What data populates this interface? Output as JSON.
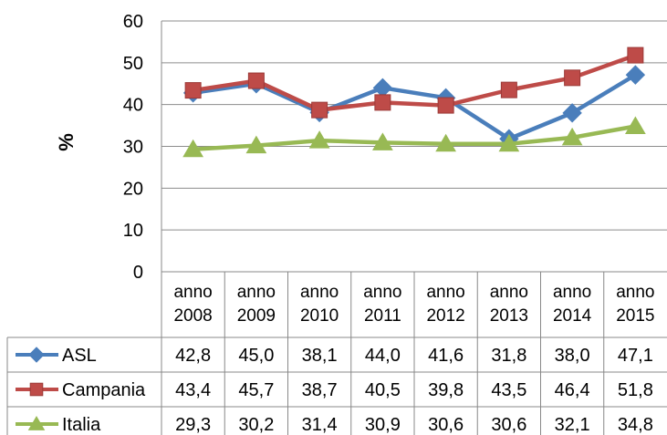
{
  "chart_data": {
    "type": "line",
    "ylabel": "%",
    "ylim": [
      0,
      60
    ],
    "yticks": [
      "0",
      "10",
      "20",
      "30",
      "40",
      "50",
      "60"
    ],
    "categories": [
      [
        "anno",
        "2008"
      ],
      [
        "anno",
        "2009"
      ],
      [
        "anno",
        "2010"
      ],
      [
        "anno",
        "2011"
      ],
      [
        "anno",
        "2012"
      ],
      [
        "anno",
        "2013"
      ],
      [
        "anno",
        "2014"
      ],
      [
        "anno",
        "2015"
      ]
    ],
    "grid": "horizontal",
    "legend": "data-table",
    "series": [
      {
        "name": "ASL",
        "color": "#4a7ebb",
        "marker": "diamond",
        "values": [
          42.8,
          45.0,
          38.1,
          44.0,
          41.6,
          31.8,
          38.0,
          47.1
        ],
        "labels": [
          "42,8",
          "45,0",
          "38,1",
          "44,0",
          "41,6",
          "31,8",
          "38,0",
          "47,1"
        ]
      },
      {
        "name": "Campania",
        "color": "#be4b48",
        "marker": "square",
        "values": [
          43.4,
          45.7,
          38.7,
          40.5,
          39.8,
          43.5,
          46.4,
          51.8
        ],
        "labels": [
          "43,4",
          "45,7",
          "38,7",
          "40,5",
          "39,8",
          "43,5",
          "46,4",
          "51,8"
        ]
      },
      {
        "name": "Italia",
        "color": "#98b954",
        "marker": "triangle",
        "values": [
          29.3,
          30.2,
          31.4,
          30.9,
          30.6,
          30.6,
          32.1,
          34.8
        ],
        "labels": [
          "29,3",
          "30,2",
          "31,4",
          "30,9",
          "30,6",
          "30,6",
          "32,1",
          "34,8"
        ]
      }
    ]
  }
}
